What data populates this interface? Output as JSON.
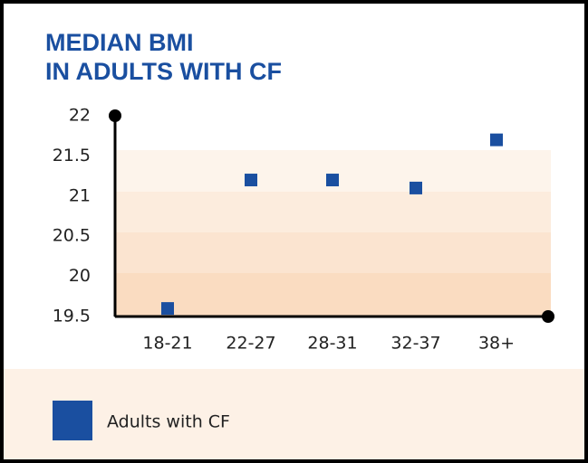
{
  "chart_data": {
    "type": "scatter",
    "title_lines": [
      "MEDIAN BMI",
      "IN ADULTS WITH CF"
    ],
    "categories": [
      "18-21",
      "22-27",
      "28-31",
      "32-37",
      "38+"
    ],
    "series": [
      {
        "name": "Adults with CF",
        "color": "#1a4fa0",
        "values": [
          19.6,
          21.2,
          21.2,
          21.1,
          21.7
        ]
      }
    ],
    "ylim": [
      19.5,
      22
    ],
    "yticks": [
      19.5,
      20,
      20.5,
      21,
      21.5,
      22
    ]
  }
}
